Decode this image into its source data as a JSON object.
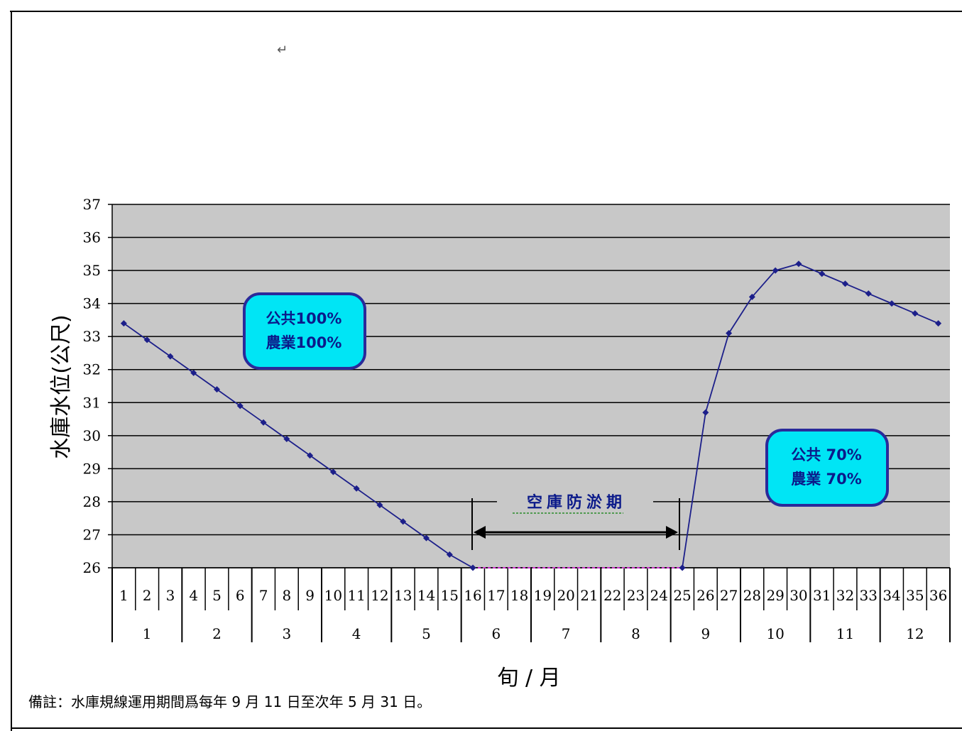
{
  "page": {
    "cursor_symbol": "↵"
  },
  "chart_data": {
    "type": "line",
    "ylabel": "水庫水位(公尺)",
    "xlabel": "旬 / 月",
    "ylim": [
      26,
      37
    ],
    "yticks": [
      37,
      36,
      35,
      34,
      33,
      32,
      31,
      30,
      29,
      28,
      27,
      26
    ],
    "grid": true,
    "x_tenday_labels": [
      "1",
      "2",
      "3",
      "4",
      "5",
      "6",
      "7",
      "8",
      "9",
      "10",
      "11",
      "12",
      "13",
      "14",
      "15",
      "16",
      "17",
      "18",
      "19",
      "20",
      "21",
      "22",
      "23",
      "24",
      "25",
      "26",
      "27",
      "28",
      "29",
      "30",
      "31",
      "32",
      "33",
      "34",
      "35",
      "36"
    ],
    "x_month_labels": [
      "1",
      "2",
      "3",
      "4",
      "5",
      "6",
      "7",
      "8",
      "9",
      "10",
      "11",
      "12"
    ],
    "series": [
      {
        "color": "#1c1f8a",
        "x": [
          1,
          2,
          3,
          4,
          5,
          6,
          7,
          8,
          9,
          10,
          11,
          12,
          13,
          14,
          15,
          16,
          25,
          26,
          27,
          28,
          29,
          30,
          31,
          32,
          33,
          34,
          35,
          36
        ],
        "values": [
          33.4,
          32.9,
          32.4,
          31.9,
          31.4,
          30.9,
          30.4,
          29.9,
          29.4,
          28.9,
          28.4,
          27.9,
          27.4,
          26.9,
          26.4,
          26.0,
          26.0,
          30.7,
          33.1,
          34.2,
          35.0,
          35.2,
          34.9,
          34.6,
          34.3,
          34.0,
          33.7,
          33.4
        ]
      }
    ],
    "flat_segment": {
      "from_x": 16,
      "to_x": 25,
      "value": 26,
      "color": "#cc33cc"
    },
    "annotations": [
      {
        "lines": [
          "公共100%",
          "農業100%"
        ],
        "fill": "#00e5f5",
        "border": "#2a2a9a"
      },
      {
        "lines": [
          "公共 70%",
          "農業 70%"
        ],
        "fill": "#00e5f5",
        "border": "#2a2a9a"
      }
    ],
    "period": {
      "label": "空庫防淤期",
      "from_x": 16,
      "to_x": 25
    },
    "colors": {
      "plot_bg": "#c8c8c8",
      "grid": "#000000",
      "line": "#1c1f8a"
    }
  },
  "note": "備註：水庫規線運用期間爲每年 9 月 11 日至次年 5 月 31 日。"
}
